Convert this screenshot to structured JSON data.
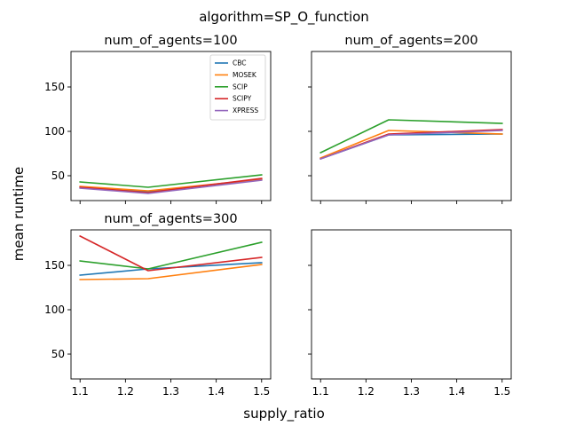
{
  "figure": {
    "suptitle": "algorithm=SP_O_function",
    "xlabel": "supply_ratio",
    "ylabel": "mean runtime"
  },
  "legend": {
    "placement": "upper-right of first panel",
    "entries": [
      "CBC",
      "MOSEK",
      "SCIP",
      "SCIPY",
      "XPRESS"
    ]
  },
  "colors": {
    "CBC": "#1f77b4",
    "MOSEK": "#ff7f0e",
    "SCIP": "#2ca02c",
    "SCIPY": "#d62728",
    "XPRESS": "#9467bd"
  },
  "chart_data": [
    {
      "type": "line",
      "title": "num_of_agents=100",
      "x": [
        1.1,
        1.25,
        1.5
      ],
      "xlim": [
        1.08,
        1.52
      ],
      "ylim": [
        22,
        190
      ],
      "xticks": [
        1.1,
        1.2,
        1.3,
        1.4,
        1.5
      ],
      "yticks": [
        50,
        100,
        150
      ],
      "show_xticklabels": false,
      "show_yticklabels": true,
      "grid": false,
      "series": [
        {
          "name": "CBC",
          "values": [
            37,
            32,
            46
          ]
        },
        {
          "name": "MOSEK",
          "values": [
            38,
            33,
            46
          ]
        },
        {
          "name": "SCIP",
          "values": [
            43,
            37,
            51
          ]
        },
        {
          "name": "SCIPY",
          "values": [
            37,
            31,
            47
          ]
        },
        {
          "name": "XPRESS",
          "values": [
            36,
            30,
            45
          ]
        }
      ]
    },
    {
      "type": "line",
      "title": "num_of_agents=200",
      "x": [
        1.1,
        1.25,
        1.5
      ],
      "xlim": [
        1.08,
        1.52
      ],
      "ylim": [
        22,
        190
      ],
      "xticks": [
        1.1,
        1.2,
        1.3,
        1.4,
        1.5
      ],
      "yticks": [
        50,
        100,
        150
      ],
      "show_xticklabels": false,
      "show_yticklabels": false,
      "grid": false,
      "series": [
        {
          "name": "CBC",
          "values": [
            69,
            96,
            97
          ]
        },
        {
          "name": "MOSEK",
          "values": [
            70,
            101,
            97
          ]
        },
        {
          "name": "SCIP",
          "values": [
            76,
            113,
            109
          ]
        },
        {
          "name": "SCIPY",
          "values": [
            69,
            97,
            102
          ]
        },
        {
          "name": "XPRESS",
          "values": [
            69,
            96,
            101
          ]
        }
      ]
    },
    {
      "type": "line",
      "title": "num_of_agents=300",
      "x": [
        1.1,
        1.25,
        1.5
      ],
      "xlim": [
        1.08,
        1.52
      ],
      "ylim": [
        22,
        190
      ],
      "xticks": [
        1.1,
        1.2,
        1.3,
        1.4,
        1.5
      ],
      "yticks": [
        50,
        100,
        150
      ],
      "show_xticklabels": true,
      "show_yticklabels": true,
      "grid": false,
      "series": [
        {
          "name": "CBC",
          "values": [
            139,
            146,
            153
          ]
        },
        {
          "name": "MOSEK",
          "values": [
            134,
            135,
            151
          ]
        },
        {
          "name": "SCIP",
          "values": [
            155,
            146,
            176
          ]
        },
        {
          "name": "SCIPY",
          "values": [
            183,
            144,
            159
          ]
        }
      ]
    },
    {
      "type": "line",
      "title": "",
      "x": [
        1.1,
        1.25,
        1.5
      ],
      "xlim": [
        1.08,
        1.52
      ],
      "ylim": [
        22,
        190
      ],
      "xticks": [
        1.1,
        1.2,
        1.3,
        1.4,
        1.5
      ],
      "yticks": [
        50,
        100,
        150
      ],
      "show_xticklabels": true,
      "show_yticklabels": false,
      "grid": false,
      "series": []
    }
  ]
}
